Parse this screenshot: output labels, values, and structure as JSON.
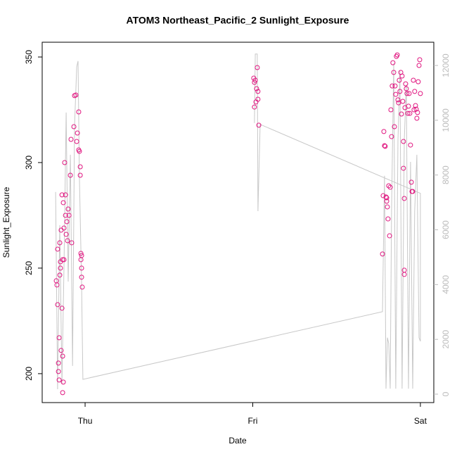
{
  "chart_data": {
    "type": "scatter",
    "title": "ATOM3 Northeast_Pacific_2 Sunlight_Exposure",
    "x_label": "Date",
    "y_label": "Sunlight_Exposure",
    "xlim": [
      -0.256,
      2.08
    ],
    "xticks": [
      {
        "value": 0,
        "label": "Thu"
      },
      {
        "value": 1,
        "label": "Fri"
      },
      {
        "value": 2,
        "label": "Sat"
      }
    ],
    "ylim": [
      186.3,
      357
    ],
    "yticks": [
      200,
      250,
      300,
      350
    ],
    "y2lim": [
      -308,
      12848
    ],
    "y2ticks": [
      0,
      2000,
      4000,
      6000,
      8000,
      10000,
      12000
    ],
    "series": [
      {
        "type": "scatter",
        "color": "#e0157f",
        "x": [
          -0.172,
          -0.168,
          -0.164,
          -0.164,
          -0.159,
          -0.159,
          -0.155,
          -0.155,
          -0.151,
          -0.151,
          -0.147,
          -0.147,
          -0.143,
          -0.143,
          -0.138,
          -0.138,
          -0.134,
          -0.134,
          -0.134,
          -0.13,
          -0.13,
          -0.126,
          -0.126,
          -0.122,
          -0.117,
          -0.117,
          -0.113,
          -0.109,
          -0.105,
          -0.101,
          -0.096,
          -0.088,
          -0.084,
          -0.08,
          -0.067,
          -0.063,
          -0.055,
          -0.05,
          -0.046,
          -0.038,
          -0.038,
          -0.034,
          -0.029,
          -0.029,
          -0.025,
          -0.025,
          -0.021,
          -0.021,
          -0.021,
          -0.017,
          1.006,
          1.01,
          1.01,
          1.015,
          1.019,
          1.023,
          1.027,
          1.031,
          1.031,
          1.036,
          1.774,
          1.778,
          1.782,
          1.786,
          1.79,
          1.795,
          1.799,
          1.799,
          1.803,
          1.807,
          1.811,
          1.816,
          1.82,
          1.824,
          1.828,
          1.832,
          1.836,
          1.841,
          1.845,
          1.849,
          1.853,
          1.857,
          1.862,
          1.866,
          1.87,
          1.874,
          1.878,
          1.883,
          1.887,
          1.891,
          1.895,
          1.899,
          1.899,
          1.904,
          1.904,
          1.904,
          1.908,
          1.912,
          1.916,
          1.92,
          1.925,
          1.929,
          1.933,
          1.937,
          1.941,
          1.946,
          1.95,
          1.954,
          1.958,
          1.962,
          1.966,
          1.971,
          1.975,
          1.979,
          1.983,
          1.987,
          1.992,
          1.996,
          2.0
        ],
        "values": [
          244,
          242,
          259,
          232.7,
          205,
          201,
          217,
          197,
          246.7,
          262,
          250,
          253,
          211,
          268,
          284.7,
          231,
          208.3,
          254,
          191,
          281,
          196,
          254,
          269,
          300,
          275,
          284.7,
          266,
          272,
          263,
          278,
          275,
          294,
          311,
          262,
          317,
          331.7,
          332,
          310,
          314,
          306,
          324,
          305.3,
          298,
          294,
          257,
          254,
          256,
          250,
          245.7,
          241,
          340,
          338,
          326.3,
          339,
          328.7,
          335,
          345,
          333.7,
          330,
          317.7,
          256.7,
          284.3,
          314.7,
          308,
          307.7,
          283.7,
          283.3,
          281.7,
          279,
          273.3,
          289,
          265.3,
          288.3,
          325,
          312.3,
          336.3,
          347.3,
          342.7,
          317,
          336.3,
          332.3,
          350.3,
          351,
          329.7,
          328.3,
          339,
          333.7,
          342.7,
          323,
          341,
          329,
          297.3,
          310,
          283,
          249,
          247,
          326,
          337.3,
          335,
          332.7,
          323.3,
          326.7,
          332.7,
          323.3,
          308.3,
          290.7,
          286.3,
          286.3,
          339,
          325,
          333.7,
          327,
          325.3,
          321,
          323.7,
          338.3,
          346,
          348.7,
          332.7
        ]
      },
      {
        "type": "line",
        "axis": "y2",
        "color": "#c8c8c8",
        "x": [
          -0.176,
          -0.164,
          -0.151,
          -0.138,
          -0.126,
          -0.113,
          -0.101,
          -0.088,
          -0.075,
          -0.063,
          -0.05,
          -0.042,
          -0.034,
          -0.021,
          -0.013,
          1.774,
          1.786,
          1.795,
          1.803,
          1.811,
          1.82,
          1.828,
          1.841,
          1.853,
          1.866,
          1.878,
          1.891,
          1.904,
          1.916,
          1.929,
          1.941,
          1.954,
          1.966,
          1.979,
          1.992,
          2.0,
          2.0,
          1.044,
          1.031,
          1.027,
          1.015,
          1.01
        ],
        "values": [
          7380,
          180,
          6170,
          390,
          4630,
          10280,
          4110,
          8740,
          1030,
          9770,
          11950,
          12160,
          7970,
          4110,
          540,
          3010,
          7970,
          200,
          2060,
          1850,
          200,
          6680,
          12080,
          200,
          9250,
          11830,
          200,
          9250,
          11310,
          200,
          8480,
          200,
          6680,
          8740,
          2060,
          1930,
          7330,
          9850,
          6680,
          12420,
          12420,
          9900
        ]
      }
    ]
  }
}
